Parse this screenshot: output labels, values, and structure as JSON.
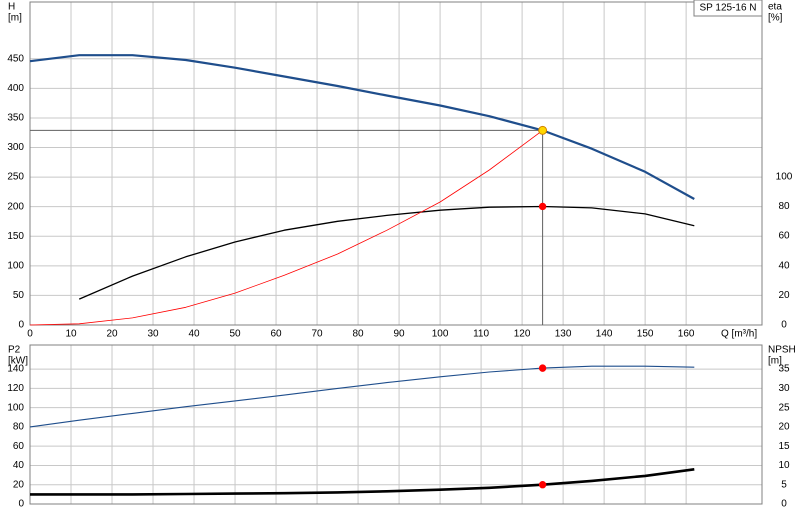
{
  "chart_data": [
    {
      "type": "line",
      "title": "SP 125-16 N",
      "y_label": [
        "H",
        "[m]"
      ],
      "y2_label": [
        "eta",
        "[%]"
      ],
      "x_label": "Q [m³/h]",
      "xlim": [
        0,
        178.5
      ],
      "xticks": [
        0,
        10,
        20,
        30,
        40,
        50,
        60,
        70,
        80,
        90,
        100,
        110,
        120,
        130,
        140,
        150,
        160
      ],
      "ylim": [
        0,
        546
      ],
      "yticks": [
        0,
        50,
        100,
        150,
        200,
        250,
        300,
        350,
        400,
        450
      ],
      "y2lim": [
        0,
        218
      ],
      "y2ticks": [
        0,
        20,
        40,
        60,
        80,
        100
      ],
      "grid": true,
      "series": [
        {
          "name": "H",
          "color": "#1f4e8c",
          "x": [
            0,
            12,
            25,
            38,
            50,
            62,
            75,
            87,
            100,
            112,
            125,
            137,
            150,
            162
          ],
          "values": [
            446,
            456,
            456,
            448,
            435,
            420,
            404,
            388,
            371,
            353,
            329,
            298,
            259,
            213
          ]
        },
        {
          "name": "eta",
          "color": "#000000",
          "axis": "y2",
          "x": [
            12,
            25,
            38,
            50,
            62,
            75,
            87,
            100,
            112,
            125,
            137,
            150,
            162
          ],
          "values": [
            17.5,
            33,
            46,
            56,
            64,
            70,
            74,
            77.5,
            79.5,
            80,
            79,
            75,
            67
          ]
        },
        {
          "name": "system",
          "color": "#ff0000",
          "x": [
            0,
            12,
            25,
            38,
            50,
            62,
            75,
            87,
            100,
            112,
            125
          ],
          "values": [
            0,
            2,
            12,
            30,
            54,
            84,
            120,
            160,
            208,
            262,
            329
          ]
        }
      ],
      "markers": [
        {
          "x": 125,
          "y": 329,
          "color": "#ffd700",
          "guide": true
        },
        {
          "x": 125,
          "y": 80,
          "axis": "y2",
          "color": "#ff0000"
        }
      ]
    },
    {
      "type": "line",
      "y_label": [
        "P2",
        "[kW]"
      ],
      "y2_label": [
        "NPSH",
        "[m]"
      ],
      "xlim": [
        0,
        178.5
      ],
      "xticks": [
        0,
        10,
        20,
        30,
        40,
        50,
        60,
        70,
        80,
        90,
        100,
        110,
        120,
        130,
        140,
        150,
        160
      ],
      "ylim": [
        0,
        165
      ],
      "yticks": [
        0,
        20,
        40,
        60,
        80,
        100,
        120,
        140
      ],
      "y2lim": [
        0,
        41.25
      ],
      "y2ticks": [
        0,
        5,
        10,
        15,
        20,
        25,
        30,
        35
      ],
      "grid": true,
      "series": [
        {
          "name": "P2",
          "color": "#1f4e8c",
          "x": [
            0,
            12,
            25,
            38,
            50,
            62,
            75,
            87,
            100,
            112,
            125,
            137,
            150,
            162
          ],
          "values": [
            80,
            87,
            94,
            101,
            107,
            113,
            120,
            126,
            132,
            137,
            141,
            143,
            143,
            142
          ]
        },
        {
          "name": "NPSH",
          "color": "#000000",
          "axis": "y2",
          "x": [
            0,
            12,
            25,
            38,
            50,
            62,
            75,
            87,
            100,
            112,
            125,
            137,
            150,
            162
          ],
          "values": [
            2.5,
            2.5,
            2.5,
            2.6,
            2.7,
            2.8,
            3.0,
            3.3,
            3.7,
            4.2,
            5.0,
            6.0,
            7.3,
            9.0
          ]
        }
      ],
      "markers": [
        {
          "x": 125,
          "y": 141,
          "color": "#ff0000"
        },
        {
          "x": 125,
          "y": 5.0,
          "axis": "y2",
          "color": "#ff0000"
        }
      ]
    }
  ]
}
